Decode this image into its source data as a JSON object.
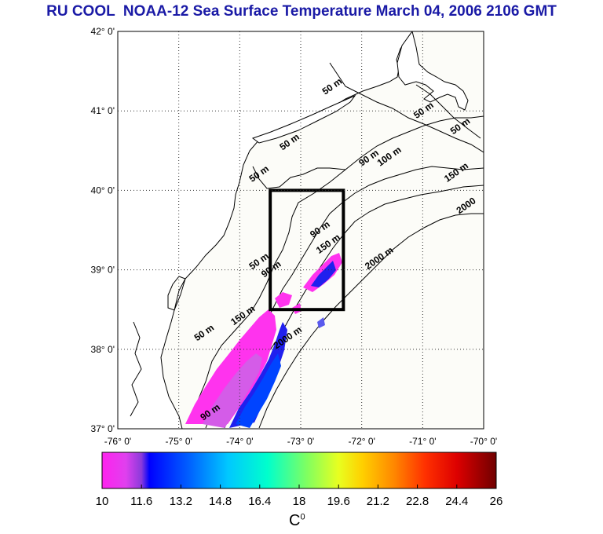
{
  "title": "RU COOL  NOAA-12 Sea Surface Temperature March 04, 2006 2106 GMT",
  "map": {
    "lat_labels": [
      "42° 0'",
      "41° 0'",
      "40° 0'",
      "39° 0'",
      "38° 0'",
      "37° 0'"
    ],
    "lon_labels": [
      "-76° 0'",
      "-75° 0'",
      "-74° 0'",
      "-73° 0'",
      "-72° 0'",
      "-71° 0'",
      "-70° 0'"
    ],
    "lat_range": [
      37,
      42
    ],
    "lon_range": [
      -76,
      -70
    ],
    "study_box": {
      "lon": [
        -73.5,
        -72.3
      ],
      "lat": [
        38.5,
        40.0
      ]
    },
    "contour_labels": [
      {
        "text": "50 m",
        "lon": -72.6,
        "lat": 41.2
      },
      {
        "text": "50 m",
        "lon": -71.1,
        "lat": 40.9
      },
      {
        "text": "50 m",
        "lon": -70.5,
        "lat": 40.7
      },
      {
        "text": "50 m",
        "lon": -73.3,
        "lat": 40.5
      },
      {
        "text": "50 m",
        "lon": -73.8,
        "lat": 40.1
      },
      {
        "text": "90 m",
        "lon": -72.0,
        "lat": 40.3
      },
      {
        "text": "100 m",
        "lon": -71.7,
        "lat": 40.3
      },
      {
        "text": "150 m",
        "lon": -70.6,
        "lat": 40.1
      },
      {
        "text": "2000",
        "lon": -70.4,
        "lat": 39.7
      },
      {
        "text": "90 m",
        "lon": -72.8,
        "lat": 39.4
      },
      {
        "text": "150 m",
        "lon": -72.7,
        "lat": 39.2
      },
      {
        "text": "2000 m",
        "lon": -71.9,
        "lat": 39.0
      },
      {
        "text": "50 m",
        "lon": -73.8,
        "lat": 39.0
      },
      {
        "text": "90 m",
        "lon": -73.6,
        "lat": 38.9
      },
      {
        "text": "50 m",
        "lon": -74.7,
        "lat": 38.1
      },
      {
        "text": "150 m",
        "lon": -74.1,
        "lat": 38.3
      },
      {
        "text": "2000 m",
        "lon": -73.4,
        "lat": 38.0
      },
      {
        "text": "90 m",
        "lon": -74.6,
        "lat": 37.1
      }
    ]
  },
  "colorbar": {
    "ticks": [
      "10",
      "11.6",
      "13.2",
      "14.8",
      "16.4",
      "18",
      "19.6",
      "21.2",
      "22.8",
      "24.4",
      "26"
    ],
    "min": 10,
    "max": 26,
    "unit": "C",
    "unit_sup": "0"
  },
  "colors": {
    "title": "#1a1aa6",
    "land": "#ffffff",
    "ocean": "#fcfcf8"
  }
}
